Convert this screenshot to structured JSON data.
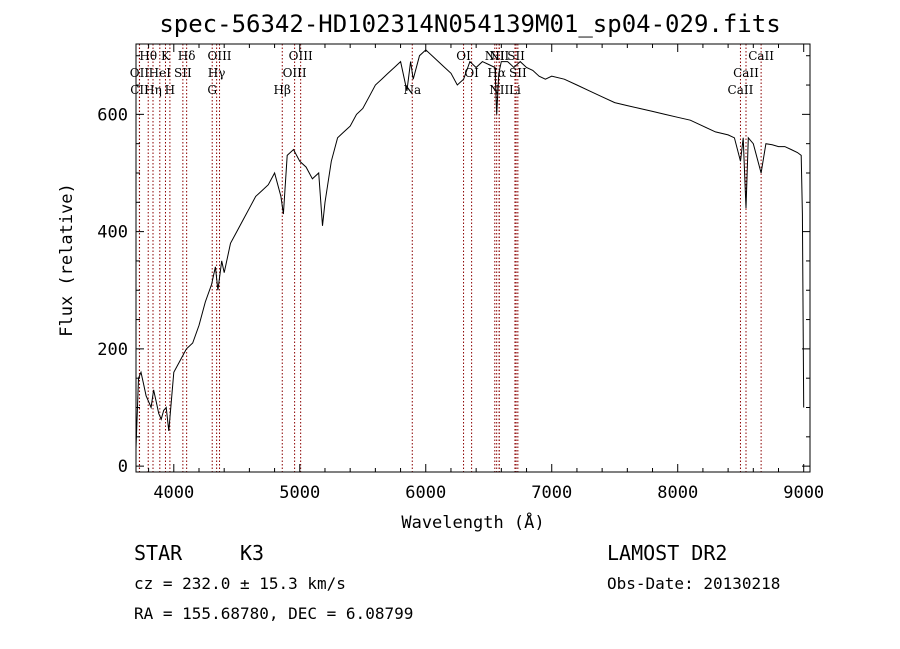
{
  "chart_data": {
    "type": "line",
    "title": "spec-56342-HD102314N054139M01_sp04-029.fits",
    "xlabel": "Wavelength (Å)",
    "ylabel": "Flux (relative)",
    "xlim": [
      3700,
      9050
    ],
    "ylim": [
      -10,
      720
    ],
    "xticks": [
      4000,
      5000,
      6000,
      7000,
      8000,
      9000
    ],
    "yticks": [
      0,
      200,
      400,
      600
    ],
    "series": [
      {
        "x": [
          3700,
          3720,
          3740,
          3760,
          3780,
          3800,
          3820,
          3840,
          3860,
          3880,
          3900,
          3920,
          3940,
          3960,
          3980,
          4000,
          4050,
          4100,
          4150,
          4200,
          4250,
          4300,
          4330,
          4350,
          4380,
          4400,
          4450,
          4500,
          4550,
          4600,
          4650,
          4700,
          4750,
          4800,
          4850,
          4870,
          4900,
          4950,
          5000,
          5050,
          5100,
          5150,
          5180,
          5200,
          5250,
          5300,
          5350,
          5400,
          5450,
          5500,
          5550,
          5600,
          5650,
          5700,
          5750,
          5800,
          5850,
          5880,
          5900,
          5950,
          6000,
          6050,
          6100,
          6150,
          6200,
          6250,
          6300,
          6350,
          6400,
          6450,
          6500,
          6550,
          6563,
          6580,
          6600,
          6650,
          6700,
          6750,
          6800,
          6850,
          6900,
          6950,
          7000,
          7100,
          7200,
          7300,
          7400,
          7500,
          7600,
          7700,
          7800,
          7900,
          8000,
          8100,
          8200,
          8300,
          8400,
          8450,
          8498,
          8520,
          8542,
          8560,
          8600,
          8662,
          8700,
          8750,
          8800,
          8850,
          8900,
          8950,
          8980,
          8990,
          9000
        ],
        "y": [
          30,
          150,
          160,
          140,
          120,
          110,
          100,
          130,
          110,
          90,
          80,
          95,
          100,
          60,
          110,
          160,
          180,
          200,
          210,
          240,
          280,
          310,
          340,
          300,
          350,
          330,
          380,
          400,
          420,
          440,
          460,
          470,
          480,
          500,
          460,
          430,
          530,
          540,
          520,
          510,
          490,
          500,
          410,
          450,
          520,
          560,
          570,
          580,
          600,
          610,
          630,
          650,
          660,
          670,
          680,
          690,
          640,
          690,
          660,
          700,
          710,
          700,
          690,
          680,
          670,
          650,
          660,
          690,
          680,
          690,
          685,
          680,
          600,
          670,
          690,
          690,
          680,
          690,
          680,
          675,
          665,
          660,
          665,
          660,
          650,
          640,
          630,
          620,
          615,
          610,
          605,
          600,
          595,
          590,
          580,
          570,
          565,
          560,
          520,
          560,
          440,
          560,
          550,
          500,
          550,
          548,
          545,
          545,
          540,
          535,
          530,
          430,
          100
        ]
      }
    ],
    "lines": [
      {
        "name": "Hθ",
        "x": 3797,
        "row": 0
      },
      {
        "name": "OII",
        "x": 3727,
        "row": 1
      },
      {
        "name": "CII",
        "x": 3728,
        "row": 2
      },
      {
        "name": "K",
        "x": 3934,
        "row": 0
      },
      {
        "name": "HeI",
        "x": 3889,
        "row": 1
      },
      {
        "name": "Hη",
        "x": 3835,
        "row": 2
      },
      {
        "name": "Hδ",
        "x": 4102,
        "row": 0
      },
      {
        "name": "SII",
        "x": 4072,
        "row": 1
      },
      {
        "name": "H",
        "x": 3969,
        "row": 2
      },
      {
        "name": "OIII",
        "x": 4363,
        "row": 0
      },
      {
        "name": "Hγ",
        "x": 4340,
        "row": 1
      },
      {
        "name": "G",
        "x": 4305,
        "row": 2
      },
      {
        "name": "OIII",
        "x": 5007,
        "row": 0
      },
      {
        "name": "OIII",
        "x": 4959,
        "row": 1
      },
      {
        "name": "Hβ",
        "x": 4861,
        "row": 2
      },
      {
        "name": "Na",
        "x": 5893,
        "row": 2
      },
      {
        "name": "OI",
        "x": 6300,
        "row": 0
      },
      {
        "name": "OI",
        "x": 6364,
        "row": 1
      },
      {
        "name": "NII",
        "x": 6548,
        "row": 0
      },
      {
        "name": "NII",
        "x": 6583,
        "row": 0
      },
      {
        "name": "SII",
        "x": 6717,
        "row": 0
      },
      {
        "name": "Hα",
        "x": 6563,
        "row": 1
      },
      {
        "name": "SII",
        "x": 6731,
        "row": 1
      },
      {
        "name": "NII",
        "x": 6583,
        "row": 2
      },
      {
        "name": "Li",
        "x": 6708,
        "row": 2
      },
      {
        "name": "CaII",
        "x": 8662,
        "row": 0
      },
      {
        "name": "CaII",
        "x": 8542,
        "row": 1
      },
      {
        "name": "CaII",
        "x": 8498,
        "row": 2
      }
    ],
    "line_color": "#8b0000",
    "spectrum_color": "#000000"
  },
  "info": {
    "class": "STAR",
    "subclass": "K3",
    "survey": "LAMOST DR2",
    "cz": "cz = 232.0 ± 15.3 km/s",
    "obs_date": "Obs-Date: 20130218",
    "radec": "RA = 155.68780, DEC =    6.08799"
  }
}
